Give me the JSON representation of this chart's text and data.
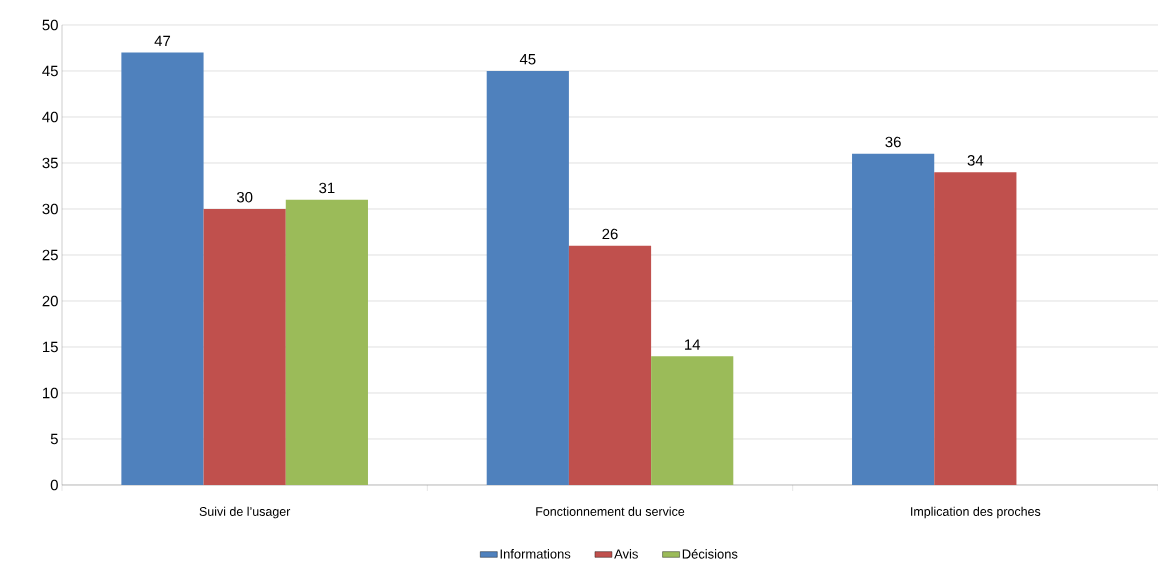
{
  "chart_data": {
    "type": "bar",
    "categories": [
      "Suivi de l’usager",
      "Fonctionnement du service",
      "Implication des proches"
    ],
    "series": [
      {
        "name": "Informations",
        "color": "#4f81bd",
        "values": [
          47,
          45,
          36
        ]
      },
      {
        "name": "Avis",
        "color": "#c0504d",
        "values": [
          30,
          26,
          34
        ]
      },
      {
        "name": "Décisions",
        "color": "#9bbb59",
        "values": [
          31,
          14,
          null
        ]
      }
    ],
    "ylim": [
      0,
      50
    ],
    "yticks": [
      0,
      5,
      10,
      15,
      20,
      25,
      30,
      35,
      40,
      45,
      50
    ],
    "grid": "y",
    "legend": "bottom",
    "data_labels": true
  }
}
